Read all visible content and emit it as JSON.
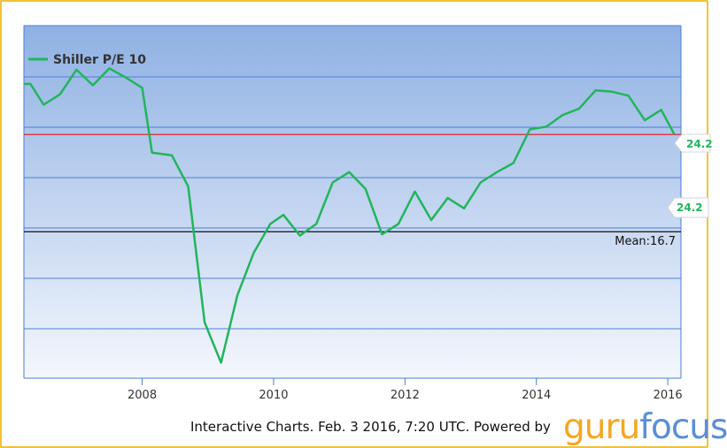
{
  "colors": {
    "series": "#21b55c",
    "refline": "#e0262a",
    "meanline": "#111111",
    "grid": "#4a7fd8",
    "bg_top": "#8fb1e3",
    "bg_bottom": "#f4f7fd",
    "logo_guru": "#f5a623",
    "logo_focus": "#5b8fd6",
    "frame": "#f5c231"
  },
  "footer": {
    "text": "Interactive Charts. Feb. 3 2016, 7:20 UTC. Powered by",
    "logo_guru": "guru",
    "logo_focus": "focus"
  },
  "chart_data": {
    "type": "line",
    "title": "",
    "xlabel": "",
    "ylabel": "",
    "xlim": [
      2006.2,
      2016.2
    ],
    "ylim": [
      5.4,
      32.6
    ],
    "x_ticks": [
      2008,
      2010,
      2012,
      2014,
      2016
    ],
    "x_tick_labels": [
      "2008",
      "2010",
      "2012",
      "2014",
      "2016"
    ],
    "grid": true,
    "legend": "top-left",
    "series": [
      {
        "name": "Shiller P/E 10",
        "x": [
          2006.2,
          2006.3,
          2006.5,
          2006.75,
          2007.0,
          2007.25,
          2007.5,
          2007.75,
          2008.0,
          2008.15,
          2008.45,
          2008.7,
          2008.95,
          2009.2,
          2009.45,
          2009.7,
          2009.95,
          2010.15,
          2010.4,
          2010.65,
          2010.9,
          2011.15,
          2011.4,
          2011.65,
          2011.9,
          2012.15,
          2012.4,
          2012.65,
          2012.9,
          2013.15,
          2013.4,
          2013.65,
          2013.9,
          2014.15,
          2014.4,
          2014.65,
          2014.9,
          2015.15,
          2015.4,
          2015.65,
          2015.9,
          2016.1
        ],
        "y": [
          28.1,
          28.1,
          26.5,
          27.3,
          29.2,
          28.0,
          29.3,
          28.6,
          27.8,
          22.8,
          22.6,
          20.2,
          9.7,
          6.6,
          11.8,
          15.1,
          17.3,
          18.0,
          16.4,
          17.3,
          20.5,
          21.3,
          20.0,
          16.5,
          17.3,
          19.8,
          17.6,
          19.3,
          18.5,
          20.5,
          21.3,
          22.0,
          24.6,
          24.8,
          25.7,
          26.2,
          27.6,
          27.5,
          27.2,
          25.3,
          26.1,
          24.2
        ]
      }
    ],
    "reference_line": {
      "value": 24.2,
      "label": "24.2"
    },
    "mean_line": {
      "value": 16.7,
      "label": "Mean:16.7"
    },
    "value_tags": [
      "24.2",
      "24.2"
    ]
  }
}
